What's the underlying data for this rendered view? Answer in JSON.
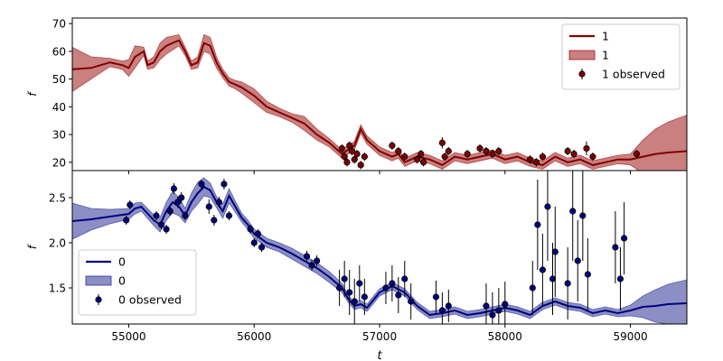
{
  "figure": {
    "xlabel": "t"
  },
  "chart_data": [
    {
      "panel": "top",
      "type": "line",
      "ylabel": "f",
      "xlim": [
        54550,
        59450
      ],
      "ylim": [
        17,
        72
      ],
      "xticks": [
        55000,
        56000,
        57000,
        58000,
        59000
      ],
      "xtick_labels_shown": false,
      "yticks": [
        20,
        30,
        40,
        50,
        60,
        70
      ],
      "color": "#800000",
      "band_color": "#a01818",
      "legend_position": "upper right",
      "legend": [
        {
          "label": "1",
          "kind": "line"
        },
        {
          "label": "1",
          "kind": "band"
        },
        {
          "label": "1 observed",
          "kind": "errorbar"
        }
      ],
      "series": {
        "model_t": [
          54550,
          54700,
          54850,
          54950,
          55000,
          55050,
          55120,
          55150,
          55200,
          55250,
          55300,
          55400,
          55450,
          55500,
          55550,
          55600,
          55650,
          55700,
          55750,
          55800,
          55850,
          55900,
          56000,
          56100,
          56200,
          56250,
          56300,
          56400,
          56500,
          56600,
          56700,
          56800,
          56850,
          56900,
          57000,
          57100,
          57150,
          57200,
          57300,
          57400,
          57500,
          57600,
          57700,
          57800,
          57900,
          58000,
          58100,
          58200,
          58300,
          58400,
          58500,
          58600,
          58700,
          58800,
          58900,
          59000,
          59100,
          59200,
          59300,
          59450
        ],
        "model_f": [
          53.5,
          54,
          56,
          55,
          54,
          58,
          60,
          55,
          56,
          60,
          62,
          64,
          60,
          55,
          56,
          63,
          62,
          56,
          52,
          49,
          48,
          47,
          44,
          40,
          38,
          37,
          36,
          34,
          30,
          27,
          23,
          26,
          32,
          28,
          24,
          22,
          23,
          20,
          22,
          21,
          19,
          22,
          21,
          22,
          23,
          21,
          22,
          20,
          19,
          22,
          20,
          21,
          19,
          20,
          21,
          21,
          22,
          23,
          23.5,
          24
        ],
        "band_width": [
          8,
          4,
          1.5,
          1.5,
          3,
          4,
          1.5,
          1.5,
          2,
          3,
          3,
          2,
          1.5,
          1.5,
          2,
          3,
          3,
          2,
          1.5,
          1.5,
          1.5,
          2,
          2.5,
          2,
          1.5,
          1.5,
          1.5,
          2.5,
          2,
          1.5,
          1.5,
          1.5,
          1.5,
          1.5,
          1.5,
          1.5,
          1.5,
          1.5,
          1.5,
          1.5,
          1.5,
          1.5,
          1.5,
          1.5,
          1.5,
          1.5,
          1.5,
          1.5,
          1.5,
          1.5,
          1.5,
          1.5,
          1.5,
          1.5,
          1.5,
          2,
          6,
          9,
          11,
          13
        ],
        "obs_t": [
          56700,
          56720,
          56740,
          56760,
          56780,
          56800,
          56820,
          56850,
          56880,
          57100,
          57150,
          57200,
          57300,
          57330,
          57350,
          57500,
          57520,
          57550,
          57700,
          57800,
          57850,
          57900,
          57950,
          58200,
          58250,
          58300,
          58500,
          58550,
          58650,
          58700,
          59050
        ],
        "obs_f": [
          25,
          22,
          20,
          26,
          24,
          21,
          23,
          19,
          22,
          26,
          24,
          22,
          21,
          23,
          20,
          27,
          22,
          24,
          23,
          25,
          24,
          23,
          24,
          21,
          20,
          22,
          24,
          23,
          25,
          22,
          23
        ],
        "obs_err": [
          1.5,
          1.5,
          1.5,
          1.5,
          1.5,
          1.5,
          1.5,
          1.5,
          1.5,
          1.5,
          1.5,
          1.5,
          1.5,
          1.5,
          1.5,
          2,
          1.5,
          1.5,
          1.5,
          1.5,
          1.5,
          1.5,
          1.5,
          1.5,
          1.5,
          1.5,
          1.5,
          1.5,
          2.5,
          1.5,
          1.5
        ]
      }
    },
    {
      "panel": "bottom",
      "type": "line",
      "ylabel": "f",
      "xlim": [
        54550,
        59450
      ],
      "ylim": [
        1.1,
        2.8
      ],
      "xticks": [
        55000,
        56000,
        57000,
        58000,
        59000
      ],
      "yticks": [
        1.5,
        2.0,
        2.5
      ],
      "color": "#000080",
      "band_color": "#2c3393",
      "legend_position": "lower left",
      "legend": [
        {
          "label": "0",
          "kind": "line"
        },
        {
          "label": "0",
          "kind": "band"
        },
        {
          "label": "0 observed",
          "kind": "errorbar"
        }
      ],
      "series": {
        "model_t": [
          54550,
          54700,
          54850,
          55000,
          55050,
          55100,
          55200,
          55250,
          55300,
          55350,
          55400,
          55450,
          55500,
          55550,
          55600,
          55650,
          55700,
          55750,
          55800,
          55850,
          55900,
          55950,
          56000,
          56050,
          56100,
          56200,
          56300,
          56400,
          56500,
          56600,
          56700,
          56750,
          56800,
          56850,
          56900,
          57000,
          57100,
          57200,
          57300,
          57400,
          57500,
          57600,
          57700,
          57800,
          57900,
          58000,
          58100,
          58200,
          58300,
          58400,
          58500,
          58600,
          58700,
          58800,
          58900,
          59000,
          59100,
          59200,
          59300,
          59450
        ],
        "model_f": [
          2.24,
          2.26,
          2.29,
          2.32,
          2.38,
          2.4,
          2.25,
          2.2,
          2.35,
          2.45,
          2.4,
          2.3,
          2.45,
          2.55,
          2.62,
          2.58,
          2.45,
          2.35,
          2.52,
          2.4,
          2.28,
          2.2,
          2.1,
          2.05,
          2.0,
          1.95,
          1.88,
          1.8,
          1.72,
          1.62,
          1.5,
          1.38,
          1.3,
          1.32,
          1.28,
          1.45,
          1.52,
          1.45,
          1.3,
          1.2,
          1.22,
          1.25,
          1.2,
          1.22,
          1.25,
          1.28,
          1.25,
          1.2,
          1.3,
          1.35,
          1.3,
          1.28,
          1.22,
          1.25,
          1.22,
          1.25,
          1.29,
          1.3,
          1.32,
          1.33
        ],
        "band_width": [
          0.2,
          0.12,
          0.08,
          0.06,
          0.06,
          0.05,
          0.06,
          0.08,
          0.1,
          0.12,
          0.1,
          0.08,
          0.1,
          0.12,
          0.1,
          0.08,
          0.06,
          0.08,
          0.08,
          0.06,
          0.05,
          0.05,
          0.05,
          0.05,
          0.05,
          0.05,
          0.06,
          0.06,
          0.06,
          0.06,
          0.05,
          0.04,
          0.04,
          0.04,
          0.04,
          0.04,
          0.04,
          0.04,
          0.04,
          0.04,
          0.04,
          0.04,
          0.04,
          0.04,
          0.04,
          0.04,
          0.04,
          0.04,
          0.04,
          0.04,
          0.04,
          0.04,
          0.04,
          0.04,
          0.04,
          0.06,
          0.12,
          0.18,
          0.22,
          0.26
        ],
        "obs_t": [
          54980,
          55010,
          55220,
          55260,
          55300,
          55330,
          55360,
          55390,
          55420,
          55450,
          55580,
          55640,
          55680,
          55720,
          55760,
          55800,
          55970,
          56000,
          56030,
          56060,
          56420,
          56460,
          56500,
          56680,
          56720,
          56760,
          56800,
          56840,
          56880,
          57050,
          57100,
          57150,
          57200,
          57250,
          57450,
          57500,
          57550,
          57850,
          57900,
          57950,
          58000,
          58220,
          58260,
          58300,
          58340,
          58380,
          58400,
          58500,
          58540,
          58580,
          58620,
          58660,
          58880,
          58920,
          58950
        ],
        "obs_f": [
          2.25,
          2.42,
          2.3,
          2.2,
          2.15,
          2.35,
          2.6,
          2.45,
          2.5,
          2.3,
          2.65,
          2.4,
          2.25,
          2.45,
          2.65,
          2.3,
          2.15,
          2.0,
          2.1,
          1.95,
          1.85,
          1.75,
          1.8,
          1.5,
          1.6,
          1.45,
          1.35,
          1.55,
          1.4,
          1.5,
          1.55,
          1.42,
          1.6,
          1.35,
          1.4,
          1.25,
          1.3,
          1.3,
          1.2,
          1.25,
          1.32,
          1.5,
          2.2,
          1.7,
          2.4,
          1.6,
          1.9,
          1.55,
          2.35,
          1.8,
          2.3,
          1.65,
          1.95,
          1.6,
          2.05
        ],
        "obs_err": [
          0.05,
          0.05,
          0.05,
          0.05,
          0.05,
          0.05,
          0.06,
          0.06,
          0.06,
          0.05,
          0.05,
          0.08,
          0.06,
          0.06,
          0.06,
          0.05,
          0.05,
          0.05,
          0.05,
          0.05,
          0.06,
          0.06,
          0.06,
          0.2,
          0.2,
          0.25,
          0.25,
          0.2,
          0.2,
          0.18,
          0.2,
          0.2,
          0.2,
          0.2,
          0.18,
          0.2,
          0.18,
          0.25,
          0.25,
          0.25,
          0.25,
          0.3,
          0.5,
          0.4,
          0.6,
          0.4,
          0.5,
          0.4,
          0.55,
          0.45,
          0.5,
          0.4,
          0.4,
          0.35,
          0.4
        ]
      }
    }
  ]
}
